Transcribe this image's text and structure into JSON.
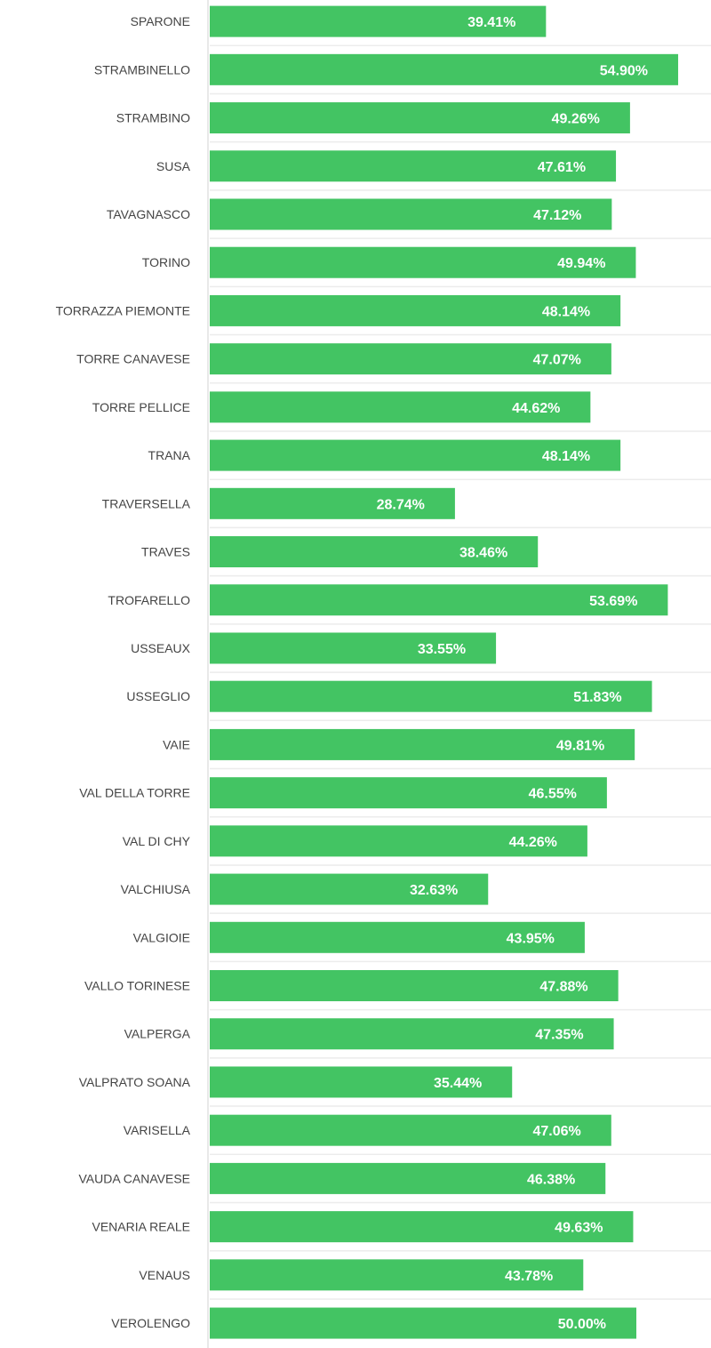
{
  "chart_data": {
    "type": "bar",
    "orientation": "horizontal",
    "bar_color": "#43c463",
    "value_format": "percent",
    "categories": [
      "SPARONE",
      "STRAMBINELLO",
      "STRAMBINO",
      "SUSA",
      "TAVAGNASCO",
      "TORINO",
      "TORRAZZA PIEMONTE",
      "TORRE CANAVESE",
      "TORRE PELLICE",
      "TRANA",
      "TRAVERSELLA",
      "TRAVES",
      "TROFARELLO",
      "USSEAUX",
      "USSEGLIO",
      "VAIE",
      "VAL DELLA TORRE",
      "VAL DI CHY",
      "VALCHIUSA",
      "VALGIOIE",
      "VALLO TORINESE",
      "VALPERGA",
      "VALPRATO SOANA",
      "VARISELLA",
      "VAUDA CANAVESE",
      "VENARIA REALE",
      "VENAUS",
      "VEROLENGO"
    ],
    "values": [
      39.41,
      54.9,
      49.26,
      47.61,
      47.12,
      49.94,
      48.14,
      47.07,
      44.62,
      48.14,
      28.74,
      38.46,
      53.69,
      33.55,
      51.83,
      49.81,
      46.55,
      44.26,
      32.63,
      43.95,
      47.88,
      47.35,
      35.44,
      47.06,
      46.38,
      49.63,
      43.78,
      50.0
    ],
    "labels": [
      "39.41%",
      "54.90%",
      "49.26%",
      "47.61%",
      "47.12%",
      "49.94%",
      "48.14%",
      "47.07%",
      "44.62%",
      "48.14%",
      "28.74%",
      "38.46%",
      "53.69%",
      "33.55%",
      "51.83%",
      "49.81%",
      "46.55%",
      "44.26%",
      "32.63%",
      "43.95%",
      "47.88%",
      "47.35%",
      "35.44%",
      "47.06%",
      "46.38%",
      "49.63%",
      "43.78%",
      "50.00%"
    ],
    "xlim": [
      0,
      58.75
    ],
    "grid": true
  }
}
